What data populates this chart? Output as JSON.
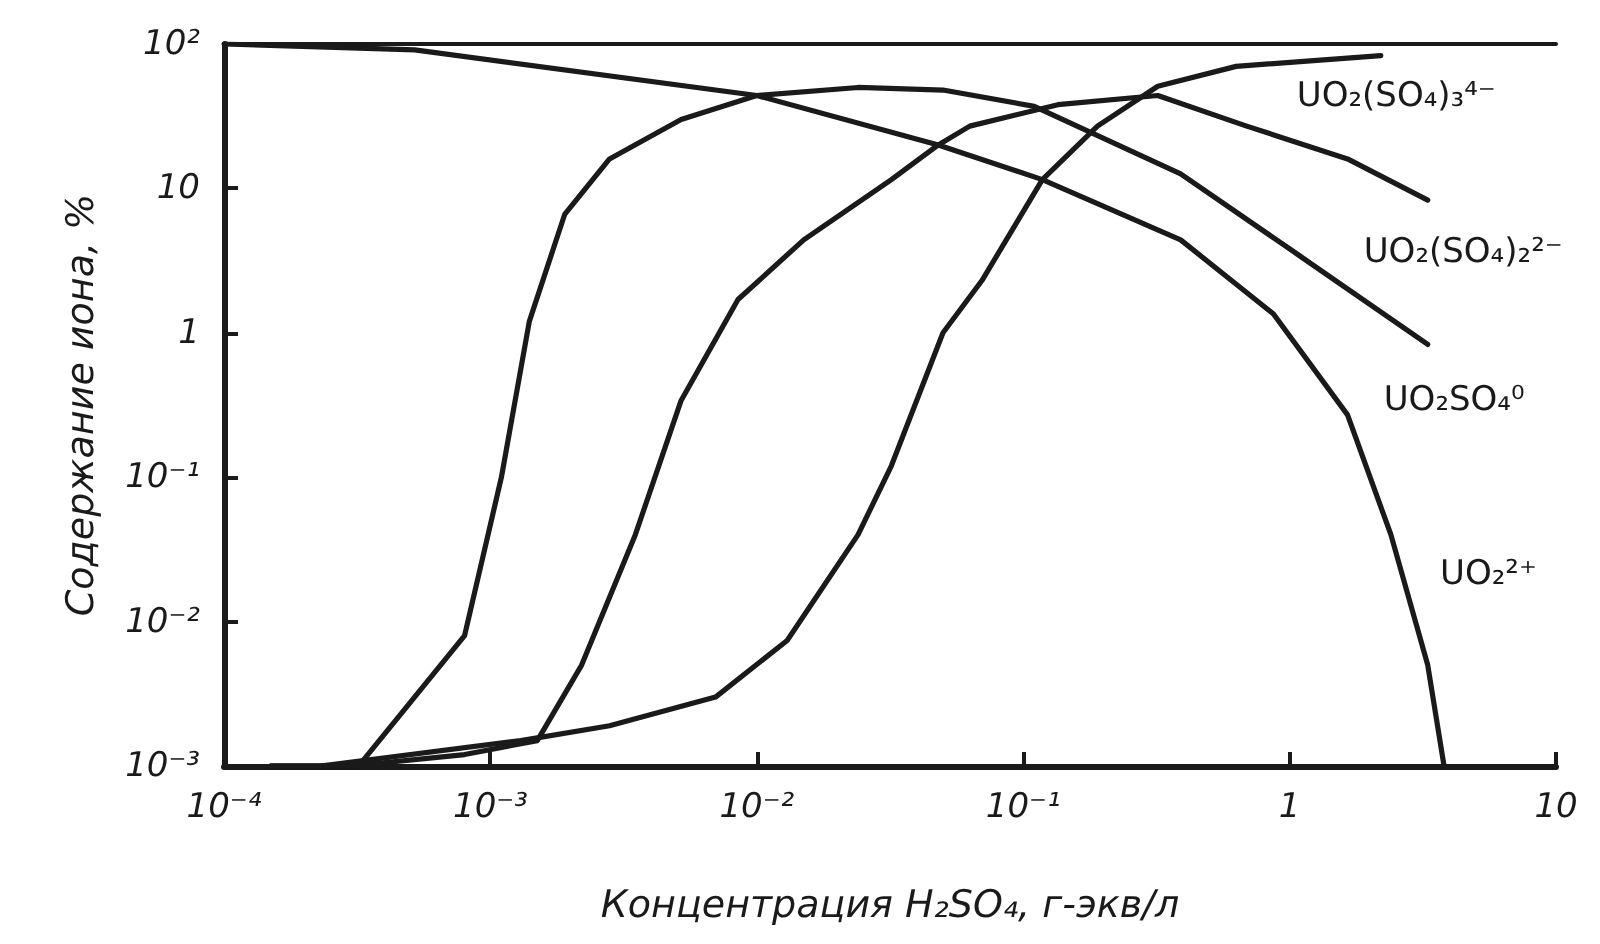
{
  "chart_data": {
    "type": "line",
    "xlabel": "Концентрация H₂SO₄, г-экв/л",
    "ylabel": "Содержание иона, %",
    "log": "xy",
    "grid": false,
    "legend": false,
    "marker": "none",
    "line_style": "solid",
    "xlim": [
      0.0001,
      10
    ],
    "ylim": [
      0.001,
      100
    ],
    "xticks": [
      {
        "value": 0.0001,
        "label": "10⁻⁴"
      },
      {
        "value": 0.001,
        "label": "10⁻³"
      },
      {
        "value": 0.01,
        "label": "10⁻²"
      },
      {
        "value": 0.1,
        "label": "10⁻¹"
      },
      1,
      10
    ],
    "yticks": [
      {
        "value": 0.001,
        "label": "10⁻³"
      },
      {
        "value": 0.01,
        "label": "10⁻²"
      },
      {
        "value": 0.1,
        "label": "10⁻¹"
      },
      1,
      10,
      {
        "value": 100,
        "label": "10²"
      }
    ],
    "series": [
      {
        "name": "UO₂(SO₄)₃⁴⁻",
        "color": "#1a1a1a",
        "x": [
          0.00015,
          0.00023,
          0.0013,
          0.0028,
          0.007,
          0.013,
          0.024,
          0.032,
          0.05,
          0.07,
          0.118,
          0.19,
          0.32,
          0.63,
          2.2
        ],
        "values": [
          0.001,
          0.001,
          0.0015,
          0.0019,
          0.003,
          0.0074,
          0.04,
          0.12,
          1,
          2.3,
          11.5,
          27,
          51,
          70,
          83
        ]
      },
      {
        "name": "UO₂(SO₄)₂²⁻",
        "color": "#1a1a1a",
        "x": [
          0.00015,
          0.0003,
          0.0008,
          0.0015,
          0.0022,
          0.0035,
          0.0052,
          0.0085,
          0.015,
          0.032,
          0.048,
          0.063,
          0.135,
          0.32,
          0.69,
          1.65,
          3.3
        ],
        "values": [
          0.001,
          0.001,
          0.0012,
          0.0015,
          0.005,
          0.04,
          0.34,
          1.7,
          4.4,
          11.5,
          20,
          27,
          38,
          44,
          27,
          16,
          8.3
        ]
      },
      {
        "name": "UO₂SO₄⁰",
        "color": "#1a1a1a",
        "x": [
          0.00015,
          0.00032,
          0.0008,
          0.0011,
          0.0014,
          0.0019,
          0.0028,
          0.0052,
          0.01,
          0.024,
          0.05,
          0.11,
          0.39,
          1.07,
          3.3
        ],
        "values": [
          0.001,
          0.001,
          0.008,
          0.1,
          1.2,
          6.6,
          16,
          30,
          44,
          50,
          48,
          37,
          12.6,
          3.5,
          0.83
        ]
      },
      {
        "name": "UO₂²⁺",
        "color": "#1a1a1a",
        "x": [
          0.0001,
          0.00052,
          0.01,
          0.048,
          0.118,
          0.39,
          0.87,
          1.65,
          2.4,
          3.3,
          3.8
        ],
        "values": [
          100,
          91,
          44,
          20,
          11.5,
          4.4,
          1.35,
          0.27,
          0.04,
          0.005,
          0.001
        ]
      }
    ]
  }
}
